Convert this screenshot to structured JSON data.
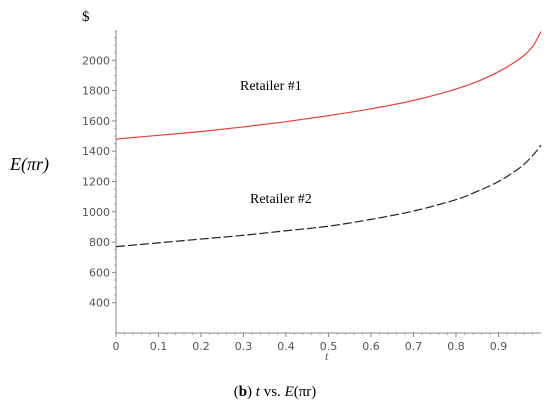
{
  "chart_data": {
    "type": "line",
    "y_unit": "$",
    "ylabel": "E(πr)",
    "xlabel": "t",
    "xlim": [
      0,
      1
    ],
    "ylim": [
      200,
      2200
    ],
    "x_ticks": [
      "0",
      "0.1",
      "0.2",
      "0.3",
      "0.4",
      "0.5",
      "0.6",
      "0.7",
      "0.8",
      "0.9"
    ],
    "x_tick_values": [
      0,
      0.1,
      0.2,
      0.3,
      0.4,
      0.5,
      0.6,
      0.7,
      0.8,
      0.9
    ],
    "y_ticks": [
      "400",
      "600",
      "800",
      "1000",
      "1200",
      "1400",
      "1600",
      "1800",
      "2000"
    ],
    "y_tick_values": [
      400,
      600,
      800,
      1000,
      1200,
      1400,
      1600,
      1800,
      2000
    ],
    "series": [
      {
        "name": "Retailer #1",
        "color": "#e8403c",
        "dash": "solid",
        "x": [
          0,
          0.1,
          0.2,
          0.3,
          0.4,
          0.5,
          0.6,
          0.7,
          0.8,
          0.85,
          0.9,
          0.95,
          0.98,
          1.0
        ],
        "values": [
          1480,
          1505,
          1530,
          1560,
          1595,
          1635,
          1680,
          1735,
          1810,
          1860,
          1925,
          2010,
          2090,
          2190
        ]
      },
      {
        "name": "Retailer #2",
        "color": "#222222",
        "dash": "dashed",
        "x": [
          0,
          0.1,
          0.2,
          0.3,
          0.4,
          0.5,
          0.6,
          0.7,
          0.8,
          0.85,
          0.9,
          0.95,
          0.98,
          1.0
        ],
        "values": [
          770,
          795,
          820,
          845,
          875,
          905,
          950,
          1005,
          1080,
          1135,
          1200,
          1290,
          1370,
          1440
        ]
      }
    ]
  },
  "caption": {
    "label": "b",
    "text_pre": " ",
    "var": "t",
    "text_mid": " vs. ",
    "func": "E",
    "text_post": "(πr)"
  }
}
